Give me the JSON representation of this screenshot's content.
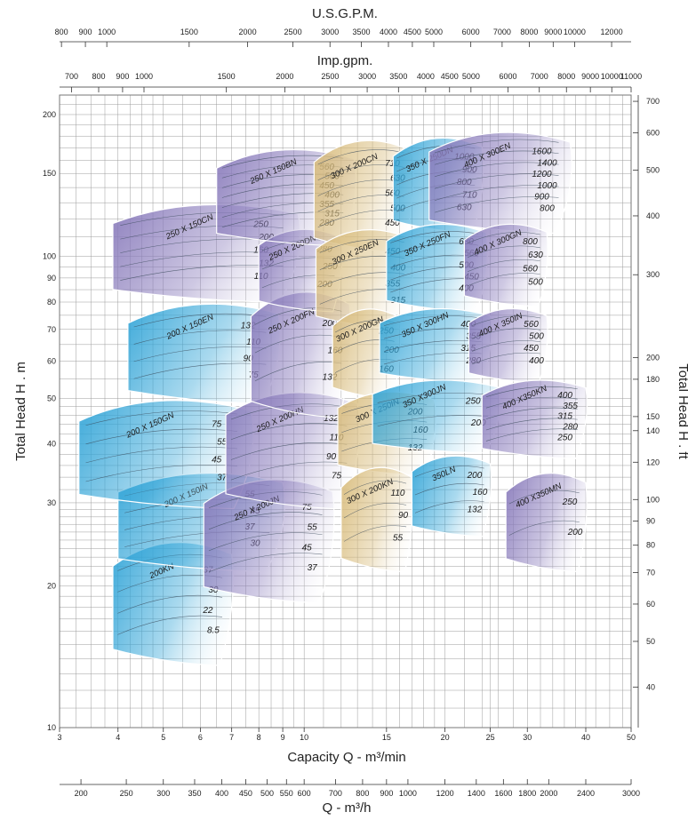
{
  "chart_data": {
    "type": "pump-selection-chart",
    "colors": {
      "blue": "#35a6d8",
      "purple": "#8a7cbc",
      "tan": "#d9bd7e",
      "grid": "#9c9c9c"
    },
    "scales": {
      "usgpm": {
        "title": "U.S.G.P.M.",
        "labels": [
          "800",
          "900",
          "1000",
          "1500",
          "2000",
          "2500",
          "3000",
          "3500",
          "4000",
          "4500",
          "5000",
          "6000",
          "7000",
          "8000",
          "9000",
          "10000",
          "12000"
        ],
        "values": [
          800,
          900,
          1000,
          1500,
          2000,
          2500,
          3000,
          3500,
          4000,
          4500,
          5000,
          6000,
          7000,
          8000,
          9000,
          10000,
          12000
        ]
      },
      "impgpm": {
        "title": "Imp.gpm.",
        "labels": [
          "700",
          "800",
          "900",
          "1000",
          "1500",
          "2000",
          "2500",
          "3000",
          "3500",
          "4000",
          "4500",
          "5000",
          "6000",
          "7000",
          "8000",
          "9000",
          "10000",
          "11000"
        ],
        "values": [
          700,
          800,
          900,
          1000,
          1500,
          2000,
          2500,
          3000,
          3500,
          4000,
          4500,
          5000,
          6000,
          7000,
          8000,
          9000,
          10000,
          11000
        ]
      },
      "capacity_min": {
        "title": "Capacity Q - m³/min",
        "labels": [
          "3",
          "4",
          "5",
          "6",
          "7",
          "8",
          "9",
          "10",
          "15",
          "20",
          "25",
          "30",
          "40",
          "50"
        ],
        "values": [
          3,
          4,
          5,
          6,
          7,
          8,
          9,
          10,
          15,
          20,
          25,
          30,
          40,
          50
        ],
        "range": [
          3,
          50
        ]
      },
      "capacity_hour": {
        "title": "Q - m³/h",
        "labels": [
          "200",
          "250",
          "300",
          "350",
          "400",
          "450",
          "500",
          "550",
          "600",
          "700",
          "800",
          "900",
          "1000",
          "1200",
          "1400",
          "1600",
          "1800",
          "2000",
          "2400",
          "3000"
        ],
        "values": [
          200,
          250,
          300,
          350,
          400,
          450,
          500,
          550,
          600,
          700,
          800,
          900,
          1000,
          1200,
          1400,
          1600,
          1800,
          2000,
          2400,
          3000
        ]
      },
      "head_m": {
        "title": "Total Head H . m",
        "labels": [
          "10",
          "20",
          "30",
          "40",
          "50",
          "60",
          "70",
          "80",
          "90",
          "100",
          "150",
          "200"
        ],
        "values": [
          10,
          20,
          30,
          40,
          50,
          60,
          70,
          80,
          90,
          100,
          150,
          200
        ],
        "range": [
          10,
          220
        ]
      },
      "head_ft": {
        "title": "Total Head H . ft",
        "labels": [
          "40",
          "50",
          "60",
          "70",
          "80",
          "90",
          "100",
          "120",
          "140",
          "150",
          "180",
          "200",
          "300",
          "400",
          "500",
          "600",
          "700"
        ],
        "values": [
          40,
          50,
          60,
          70,
          80,
          90,
          100,
          120,
          140,
          150,
          180,
          200,
          300,
          400,
          500,
          600,
          700
        ]
      }
    },
    "zones": [
      {
        "name": "200KN",
        "color": "blue",
        "q": [
          3.9,
          7.0
        ],
        "h": [
          14,
          25
        ],
        "curves": [
          "37",
          "30",
          "22",
          "8.5"
        ]
      },
      {
        "name": "200 X 150IN",
        "color": "blue",
        "q": [
          4.0,
          9.0
        ],
        "h": [
          22,
          35
        ],
        "curves": [
          "55",
          "45",
          "37",
          "30"
        ]
      },
      {
        "name": "200 X 150GN",
        "color": "blue",
        "q": [
          3.3,
          7.7
        ],
        "h": [
          30,
          50
        ],
        "curves": [
          "75",
          "55",
          "45",
          "37"
        ]
      },
      {
        "name": "200 X 150EN",
        "color": "blue",
        "q": [
          4.2,
          8.8
        ],
        "h": [
          50,
          80
        ],
        "curves": [
          "132",
          "110",
          "90",
          "75"
        ]
      },
      {
        "name": "250 X 150CN",
        "color": "purple",
        "q": [
          3.9,
          9.7
        ],
        "h": [
          82,
          130
        ],
        "curves": [
          "250",
          "200",
          "160",
          "132",
          "110"
        ]
      },
      {
        "name": "250 X 200JN",
        "color": "purple",
        "q": [
          6.1,
          11.5
        ],
        "h": [
          19,
          34
        ],
        "curves": [
          "75",
          "55",
          "45",
          "37"
        ]
      },
      {
        "name": "250 X 200HN",
        "color": "purple",
        "q": [
          6.8,
          13.0
        ],
        "h": [
          30,
          52
        ],
        "curves": [
          "132",
          "110",
          "90",
          "75"
        ]
      },
      {
        "name": "250 X 200FN",
        "color": "purple",
        "q": [
          7.7,
          12.5
        ],
        "h": [
          47,
          85
        ],
        "curves": [
          "200",
          "160",
          "132"
        ]
      },
      {
        "name": "250 X 200DN",
        "color": "purple",
        "q": [
          8.0,
          12.0
        ],
        "h": [
          78,
          115
        ],
        "curves": [
          "280",
          "250",
          "200"
        ]
      },
      {
        "name": "250 X 150BN",
        "color": "purple",
        "q": [
          6.5,
          12.8
        ],
        "h": [
          108,
          170
        ],
        "curves": [
          "560",
          "500",
          "450",
          "400",
          "355",
          "315",
          "280"
        ]
      },
      {
        "name": "300 X 200CN",
        "color": "tan",
        "q": [
          10.5,
          17.0
        ],
        "h": [
          105,
          178
        ],
        "curves": [
          "710",
          "630",
          "560",
          "500",
          "450"
        ]
      },
      {
        "name": "300 X 250EN",
        "color": "tan",
        "q": [
          10.6,
          17.0
        ],
        "h": [
          72,
          115
        ],
        "curves": [
          "450",
          "400",
          "355",
          "315"
        ]
      },
      {
        "name": "300 X 200GN",
        "color": "tan",
        "q": [
          11.5,
          16.0
        ],
        "h": [
          51,
          78
        ],
        "curves": [
          "250",
          "200",
          "160"
        ]
      },
      {
        "name": "300 X 250IN",
        "color": "tan",
        "q": [
          11.8,
          19.0
        ],
        "h": [
          35,
          52
        ],
        "curves": [
          "200",
          "160",
          "132"
        ]
      },
      {
        "name": "300 X 200KN",
        "color": "tan",
        "q": [
          12.0,
          17.0
        ],
        "h": [
          22,
          36
        ],
        "curves": [
          "110",
          "90",
          "55"
        ]
      },
      {
        "name": "350 X 250DN",
        "color": "blue",
        "q": [
          15.5,
          24.0
        ],
        "h": [
          115,
          180
        ],
        "curves": [
          "1000",
          "900",
          "800",
          "710",
          "630"
        ]
      },
      {
        "name": "350 X 250FN",
        "color": "blue",
        "q": [
          15.0,
          24.5
        ],
        "h": [
          78,
          118
        ],
        "curves": [
          "630",
          "560",
          "500",
          "450",
          "400"
        ]
      },
      {
        "name": "350 X 300HN",
        "color": "blue",
        "q": [
          14.5,
          25.0
        ],
        "h": [
          55,
          78
        ],
        "curves": [
          "400",
          "355",
          "315",
          "280"
        ]
      },
      {
        "name": "350 X300JN",
        "color": "blue",
        "q": [
          14.0,
          26.0
        ],
        "h": [
          39,
          55
        ],
        "curves": [
          "250",
          "200"
        ]
      },
      {
        "name": "350LN",
        "color": "blue",
        "q": [
          17.0,
          25.0
        ],
        "h": [
          26,
          38
        ],
        "curves": [
          "200",
          "160",
          "132"
        ]
      },
      {
        "name": "400 X 300EN",
        "color": "purple",
        "q": [
          18.5,
          37.0
        ],
        "h": [
          115,
          185
        ],
        "curves": [
          "1600",
          "1400",
          "1200",
          "1000",
          "900",
          "800"
        ]
      },
      {
        "name": "400 X 300GN",
        "color": "purple",
        "q": [
          22.0,
          33.0
        ],
        "h": [
          80,
          118
        ],
        "curves": [
          "800",
          "630",
          "560",
          "500"
        ]
      },
      {
        "name": "400 X 350IN",
        "color": "purple",
        "q": [
          22.5,
          33.0
        ],
        "h": [
          55,
          78
        ],
        "curves": [
          "560",
          "500",
          "450",
          "400"
        ]
      },
      {
        "name": "400 X350KN",
        "color": "purple",
        "q": [
          24.0,
          40.0
        ],
        "h": [
          38,
          55
        ],
        "curves": [
          "400",
          "355",
          "315",
          "280",
          "250"
        ]
      },
      {
        "name": "400 X350MN",
        "color": "purple",
        "q": [
          27.0,
          40.0
        ],
        "h": [
          22,
          35
        ],
        "curves": [
          "250",
          "200"
        ]
      }
    ]
  }
}
